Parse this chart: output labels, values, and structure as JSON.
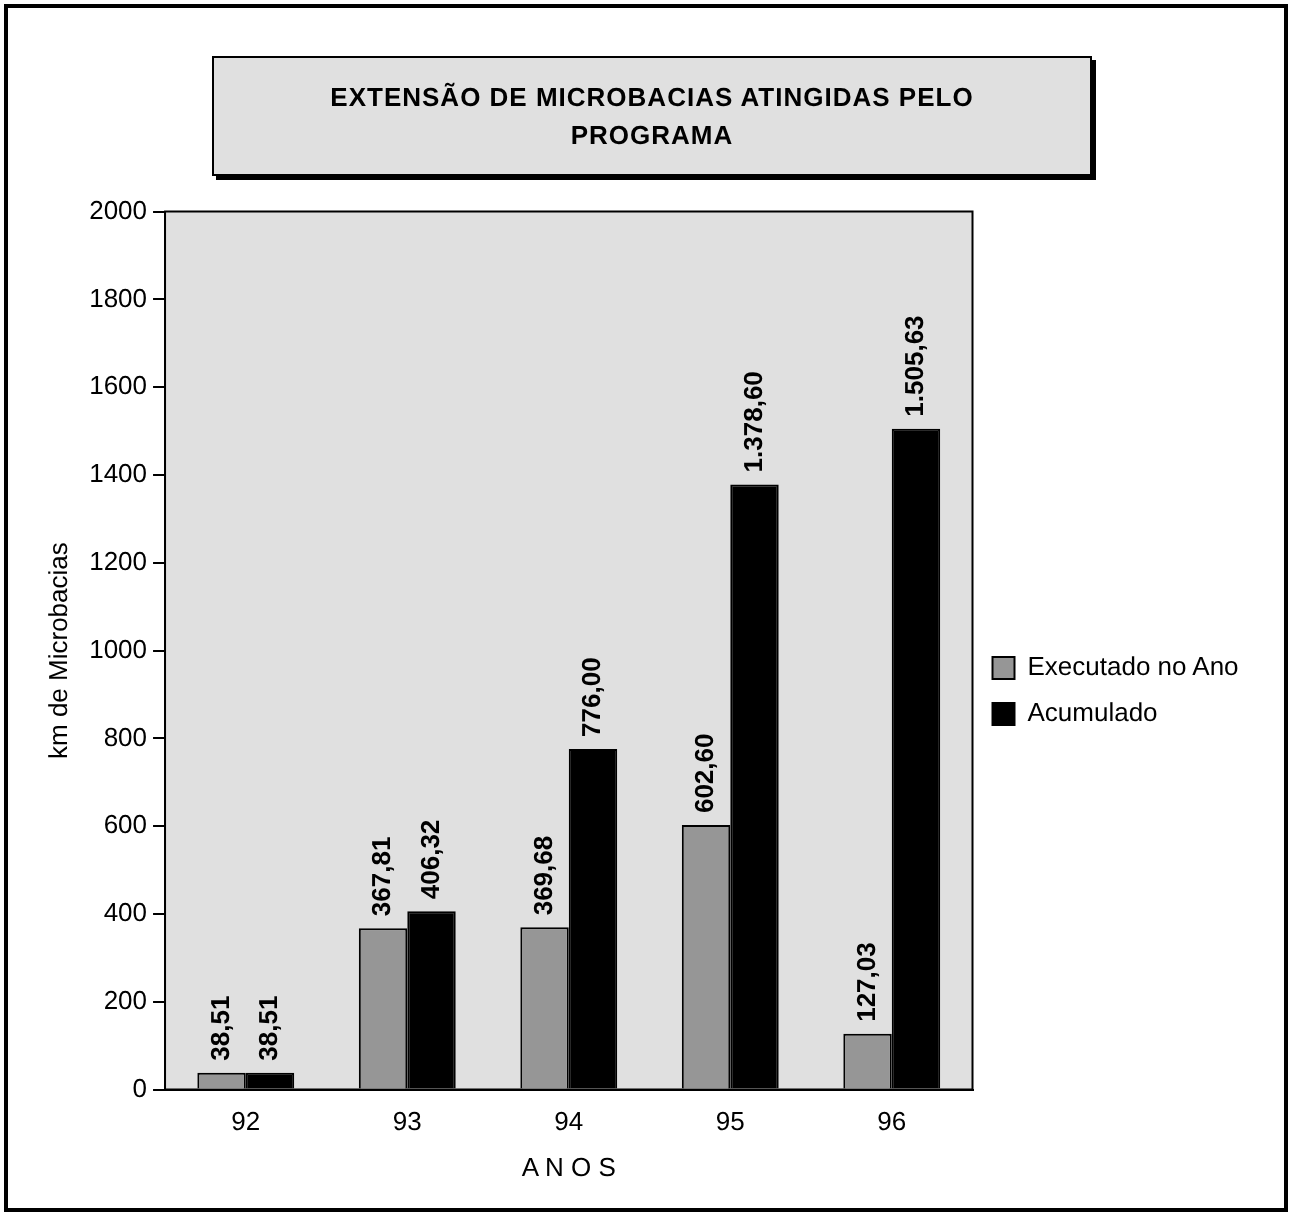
{
  "chart_data": {
    "type": "bar",
    "title": "EXTENSÃO DE MICROBACIAS ATINGIDAS PELO PROGRAMA",
    "xlabel": "A N O S",
    "ylabel": "km de Microbacias",
    "categories": [
      "92",
      "93",
      "94",
      "95",
      "96"
    ],
    "series": [
      {
        "name": "Executado no Ano",
        "color": "#969696",
        "values": [
          38.51,
          367.81,
          369.68,
          602.6,
          127.03
        ],
        "value_labels": [
          "38,51",
          "367,81",
          "369,68",
          "602,60",
          "127,03"
        ]
      },
      {
        "name": "Acumulado",
        "color": "#000000",
        "values": [
          38.51,
          406.32,
          776.0,
          1378.6,
          1505.63
        ],
        "value_labels": [
          "38,51",
          "406,32",
          "776,00",
          "1.378,60",
          "1.505,63"
        ]
      }
    ],
    "ylim": [
      0,
      2000
    ],
    "yticks": [
      0,
      200,
      400,
      600,
      800,
      1000,
      1200,
      1400,
      1600,
      1800,
      2000
    ],
    "grid": false,
    "legend": "right"
  }
}
